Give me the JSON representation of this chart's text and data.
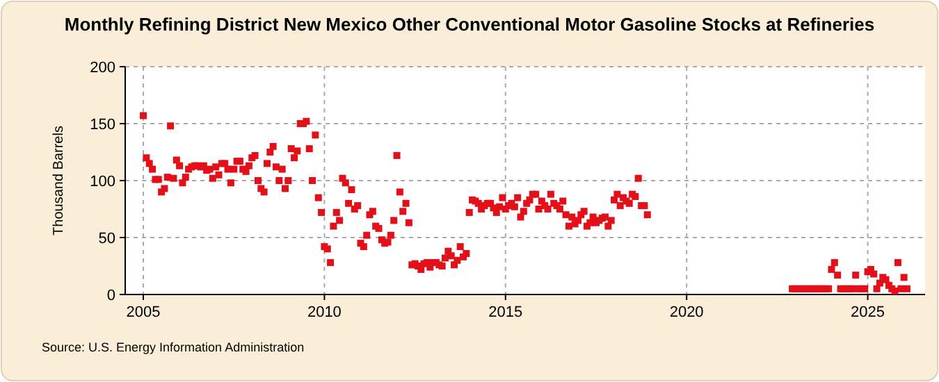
{
  "chart_data": {
    "type": "scatter",
    "title": "Monthly Refining District New Mexico Other Conventional Motor Gasoline Stocks at Refineries",
    "ylabel": "Thousand Barrels",
    "annotations": [
      "Source: U.S. Energy Information Administration"
    ],
    "marker": "square",
    "grid": true,
    "xlim": [
      "2004-07",
      "2026-08"
    ],
    "xticks": [
      "2005",
      "2010",
      "2015",
      "2020",
      "2025"
    ],
    "ylim": [
      0,
      200
    ],
    "yticks": [
      0,
      50,
      100,
      150,
      200
    ],
    "x": [
      "2005-01",
      "2005-02",
      "2005-03",
      "2005-04",
      "2005-05",
      "2005-06",
      "2005-07",
      "2005-08",
      "2005-09",
      "2005-10",
      "2005-11",
      "2005-12",
      "2006-01",
      "2006-02",
      "2006-03",
      "2006-04",
      "2006-05",
      "2006-06",
      "2006-07",
      "2006-08",
      "2006-09",
      "2006-10",
      "2006-11",
      "2006-12",
      "2007-01",
      "2007-02",
      "2007-03",
      "2007-04",
      "2007-05",
      "2007-06",
      "2007-07",
      "2007-08",
      "2007-09",
      "2007-10",
      "2007-11",
      "2007-12",
      "2008-01",
      "2008-02",
      "2008-03",
      "2008-04",
      "2008-05",
      "2008-06",
      "2008-07",
      "2008-08",
      "2008-09",
      "2008-10",
      "2008-11",
      "2008-12",
      "2009-01",
      "2009-02",
      "2009-03",
      "2009-04",
      "2009-05",
      "2009-06",
      "2009-07",
      "2009-08",
      "2009-09",
      "2009-10",
      "2009-11",
      "2009-12",
      "2010-01",
      "2010-02",
      "2010-03",
      "2010-04",
      "2010-05",
      "2010-06",
      "2010-07",
      "2010-08",
      "2010-09",
      "2010-10",
      "2010-11",
      "2010-12",
      "2011-01",
      "2011-02",
      "2011-03",
      "2011-04",
      "2011-05",
      "2011-06",
      "2011-07",
      "2011-08",
      "2011-09",
      "2011-10",
      "2011-11",
      "2011-12",
      "2012-01",
      "2012-02",
      "2012-03",
      "2012-04",
      "2012-05",
      "2012-06",
      "2012-07",
      "2012-08",
      "2012-09",
      "2012-10",
      "2012-11",
      "2012-12",
      "2013-01",
      "2013-02",
      "2013-03",
      "2013-04",
      "2013-05",
      "2013-06",
      "2013-07",
      "2013-08",
      "2013-09",
      "2013-10",
      "2013-11",
      "2013-12",
      "2014-01",
      "2014-02",
      "2014-03",
      "2014-04",
      "2014-05",
      "2014-06",
      "2014-07",
      "2014-08",
      "2014-09",
      "2014-10",
      "2014-11",
      "2014-12",
      "2015-01",
      "2015-02",
      "2015-03",
      "2015-04",
      "2015-05",
      "2015-06",
      "2015-07",
      "2015-08",
      "2015-09",
      "2015-10",
      "2015-11",
      "2015-12",
      "2016-01",
      "2016-02",
      "2016-03",
      "2016-04",
      "2016-05",
      "2016-06",
      "2016-07",
      "2016-08",
      "2016-09",
      "2016-10",
      "2016-11",
      "2016-12",
      "2017-01",
      "2017-02",
      "2017-03",
      "2017-04",
      "2017-05",
      "2017-06",
      "2017-07",
      "2017-08",
      "2017-09",
      "2017-10",
      "2017-11",
      "2017-12",
      "2018-01",
      "2018-02",
      "2018-03",
      "2018-04",
      "2018-05",
      "2018-06",
      "2018-07",
      "2018-08",
      "2018-09",
      "2018-10",
      "2018-11",
      "2018-12",
      "2022-12",
      "2023-01",
      "2023-02",
      "2023-03",
      "2023-04",
      "2023-05",
      "2023-06",
      "2023-07",
      "2023-08",
      "2023-09",
      "2023-10",
      "2023-11",
      "2023-12",
      "2024-01",
      "2024-02",
      "2024-03",
      "2024-04",
      "2024-05",
      "2024-06",
      "2024-07",
      "2024-08",
      "2024-09",
      "2024-10",
      "2024-11",
      "2024-12",
      "2025-01",
      "2025-02",
      "2025-03",
      "2025-04",
      "2025-05",
      "2025-06",
      "2025-07",
      "2025-08",
      "2025-09",
      "2025-10",
      "2025-11",
      "2025-12",
      "2026-01",
      "2026-02"
    ],
    "series": [
      {
        "color": "#e3101a",
        "values": [
          157,
          120,
          115,
          110,
          101,
          101,
          90,
          93,
          103,
          148,
          102,
          118,
          113,
          98,
          103,
          110,
          112,
          113,
          113,
          112,
          113,
          109,
          110,
          102,
          112,
          105,
          115,
          115,
          110,
          98,
          110,
          117,
          117,
          110,
          108,
          113,
          120,
          122,
          100,
          93,
          90,
          115,
          125,
          130,
          112,
          100,
          110,
          93,
          100,
          128,
          120,
          126,
          150,
          150,
          152,
          128,
          100,
          140,
          85,
          72,
          42,
          40,
          28,
          60,
          72,
          65,
          102,
          98,
          80,
          92,
          75,
          78,
          45,
          42,
          52,
          70,
          73,
          60,
          58,
          48,
          45,
          46,
          52,
          65,
          122,
          90,
          73,
          80,
          63,
          26,
          27,
          25,
          22,
          27,
          28,
          24,
          28,
          28,
          26,
          25,
          32,
          38,
          34,
          26,
          30,
          42,
          33,
          36,
          72,
          83,
          82,
          80,
          75,
          78,
          80,
          80,
          76,
          72,
          77,
          85,
          75,
          78,
          80,
          77,
          85,
          68,
          73,
          80,
          83,
          88,
          88,
          75,
          82,
          78,
          75,
          88,
          80,
          78,
          75,
          82,
          70,
          60,
          68,
          62,
          65,
          70,
          73,
          60,
          63,
          68,
          63,
          65,
          67,
          68,
          60,
          65,
          83,
          88,
          78,
          85,
          82,
          80,
          88,
          86,
          102,
          78,
          78,
          70,
          5,
          5,
          5,
          5,
          5,
          5,
          5,
          5,
          5,
          5,
          5,
          5,
          5,
          22,
          28,
          17,
          5,
          5,
          5,
          5,
          5,
          17,
          5,
          5,
          5,
          20,
          22,
          18,
          5,
          10,
          15,
          13,
          8,
          5,
          3,
          28,
          5,
          15,
          5
        ]
      }
    ]
  }
}
